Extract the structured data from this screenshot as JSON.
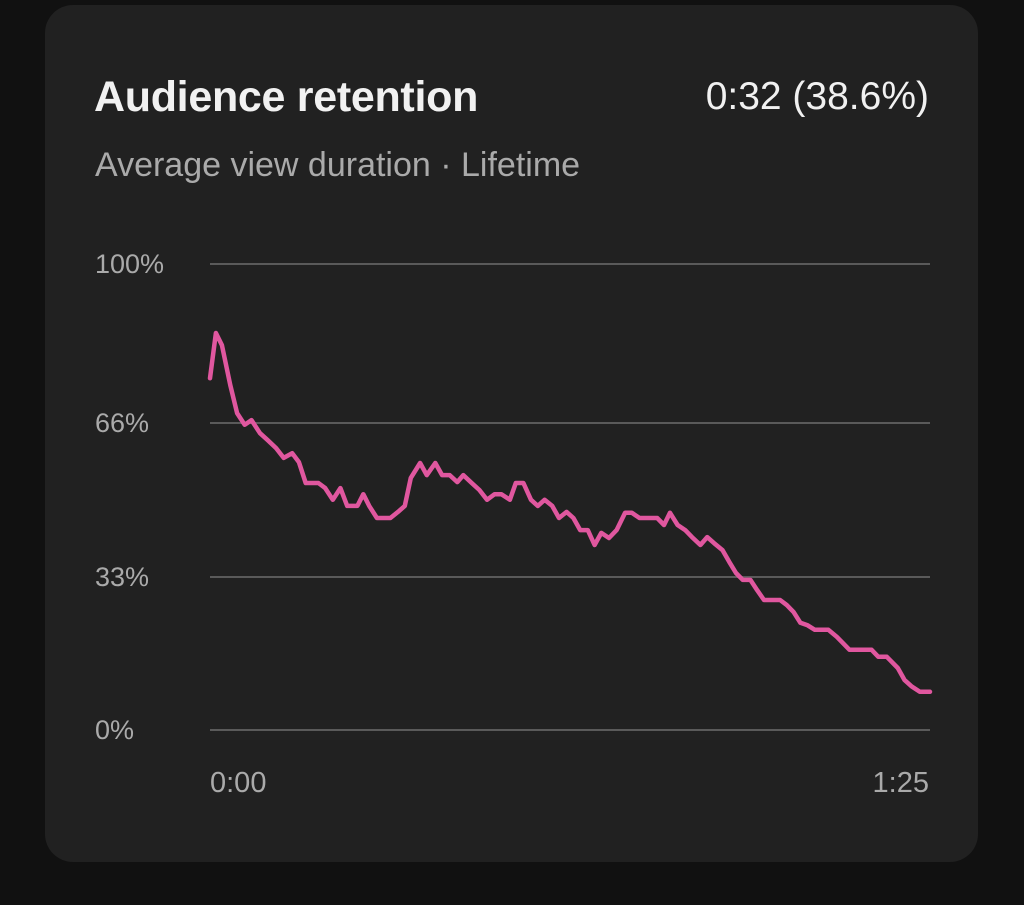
{
  "card": {
    "title": "Audience retention",
    "summary": "0:32 (38.6%)",
    "subtitle": "Average view duration · Lifetime"
  },
  "colors": {
    "background": "#111111",
    "card": "#212121",
    "line": "#e0579f",
    "grid": "#5a5a5a",
    "text_primary": "#f1f1f1",
    "text_secondary": "#aaaaaa"
  },
  "axis": {
    "y_ticks": [
      "100%",
      "66%",
      "33%",
      "0%"
    ],
    "x_ticks": [
      "0:00",
      "1:25"
    ]
  },
  "chart_data": {
    "type": "line",
    "title": "Audience retention",
    "subtitle": "Average view duration · Lifetime",
    "xlabel": "",
    "ylabel": "",
    "xlim": [
      0,
      85
    ],
    "ylim": [
      0,
      100
    ],
    "x_tick_labels": [
      "0:00",
      "1:25"
    ],
    "y_tick_values": [
      100,
      66,
      33,
      0
    ],
    "y_tick_labels": [
      "100%",
      "66%",
      "33%",
      "0%"
    ],
    "grid": true,
    "legend": null,
    "annotation": "0:32 (38.6%)",
    "series": [
      {
        "name": "Audience retention",
        "color": "#e0579f",
        "x": [
          0,
          0.7,
          1.4,
          2.4,
          3.2,
          4.1,
          4.9,
          5.9,
          6.8,
          7.8,
          8.7,
          9.7,
          10.5,
          11.3,
          12.8,
          13.6,
          14.5,
          15.4,
          16.2,
          17.4,
          18.1,
          18.8,
          19.7,
          21.3,
          22.2,
          23.0,
          23.7,
          24.8,
          25.6,
          26.6,
          27.4,
          28.3,
          29.2,
          29.9,
          30.9,
          31.8,
          32.7,
          33.6,
          34.4,
          35.4,
          36.1,
          37.0,
          37.9,
          38.7,
          39.5,
          40.4,
          41.2,
          42.1,
          42.9,
          43.7,
          44.6,
          45.4,
          46.2,
          47.1,
          48.0,
          49.0,
          49.8,
          50.7,
          52.0,
          52.8,
          53.6,
          54.3,
          55.2,
          56.1,
          56.9,
          57.9,
          58.7,
          59.5,
          60.5,
          61.3,
          62.1,
          62.9,
          63.8,
          64.6,
          65.4,
          66.3,
          67.3,
          68.1,
          68.9,
          69.7,
          70.5,
          71.4,
          73.0,
          74.0,
          74.7,
          75.5,
          78.1,
          78.9,
          79.9,
          81.2,
          82.0,
          82.8,
          83.8,
          85.0
        ],
        "values": [
          75.5,
          85.2,
          82.6,
          74.0,
          68.0,
          65.5,
          66.5,
          63.7,
          62.2,
          60.5,
          58.4,
          59.4,
          57.5,
          53.0,
          53.0,
          51.9,
          49.4,
          51.9,
          48.1,
          48.1,
          50.6,
          48.1,
          45.5,
          45.5,
          46.8,
          48.1,
          54.1,
          57.3,
          54.7,
          57.3,
          54.7,
          54.7,
          53.2,
          54.7,
          53.0,
          51.5,
          49.4,
          50.6,
          50.6,
          49.4,
          53.0,
          53.0,
          49.4,
          48.1,
          49.4,
          48.1,
          45.5,
          46.8,
          45.5,
          42.9,
          42.9,
          39.7,
          42.3,
          41.2,
          42.9,
          46.6,
          46.6,
          45.5,
          45.5,
          45.5,
          44.0,
          46.6,
          44.0,
          42.9,
          41.4,
          39.7,
          41.4,
          40.1,
          38.6,
          36.1,
          33.7,
          32.2,
          32.2,
          30.0,
          27.9,
          27.9,
          27.9,
          26.8,
          25.3,
          23.0,
          22.5,
          21.5,
          21.5,
          20.0,
          18.7,
          17.2,
          17.2,
          15.7,
          15.7,
          13.3,
          10.7,
          9.4,
          8.2,
          8.2
        ]
      }
    ]
  }
}
